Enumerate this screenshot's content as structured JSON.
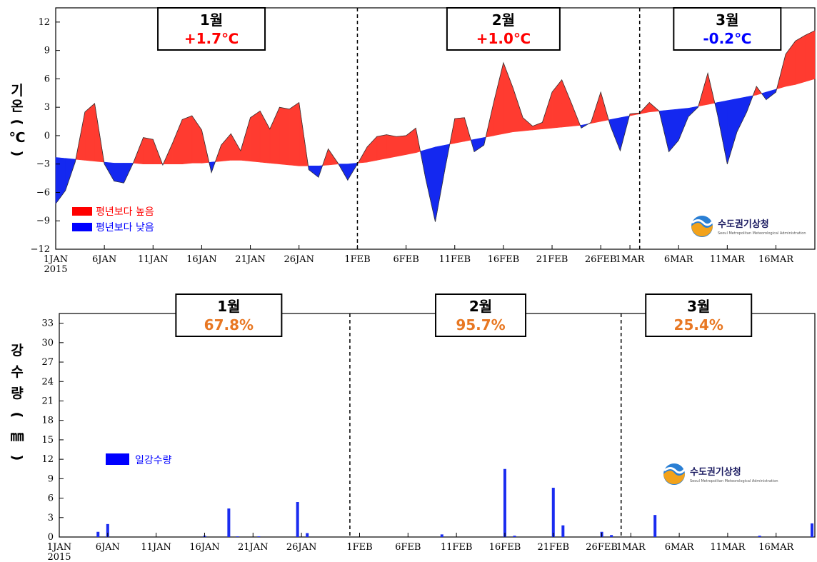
{
  "chart_data": [
    {
      "type": "area",
      "ylabel_chars": [
        "기",
        "온",
        "(",
        "℃",
        ")"
      ],
      "ylim": [
        -12,
        13.5
      ],
      "yticks": [
        12,
        9,
        6,
        3,
        0,
        -3,
        -6,
        -9,
        -12
      ],
      "xlim": [
        0,
        78
      ],
      "xticks": [
        {
          "x": 0,
          "label": "1JAN"
        },
        {
          "x": 5,
          "label": "6JAN"
        },
        {
          "x": 10,
          "label": "11JAN"
        },
        {
          "x": 15,
          "label": "16JAN"
        },
        {
          "x": 20,
          "label": "21JAN"
        },
        {
          "x": 25,
          "label": "26JAN"
        },
        {
          "x": 31,
          "label": "1FEB"
        },
        {
          "x": 36,
          "label": "6FEB"
        },
        {
          "x": 41,
          "label": "11FEB"
        },
        {
          "x": 46,
          "label": "16FEB"
        },
        {
          "x": 51,
          "label": "21FEB"
        },
        {
          "x": 56,
          "label": "26FEB"
        },
        {
          "x": 59,
          "label": "1MAR"
        },
        {
          "x": 64,
          "label": "6MAR"
        },
        {
          "x": 69,
          "label": "11MAR"
        },
        {
          "x": 74,
          "label": "16MAR"
        }
      ],
      "year_label": "2015",
      "month_dividers": [
        31,
        60
      ],
      "month_boxes": [
        {
          "month": "1월",
          "value": "+1.7℃",
          "color": "#ff0000",
          "center": 16
        },
        {
          "month": "2월",
          "value": "+1.0℃",
          "color": "#ff0000",
          "center": 46
        },
        {
          "month": "3월",
          "value": "-0.2℃",
          "color": "#0000ff",
          "center": 69
        }
      ],
      "legend": [
        {
          "label": "평년보다 높음",
          "color": "#ff0000"
        },
        {
          "label": "평년보다 낮음",
          "color": "#0000ff"
        }
      ],
      "legend_position": "lower-left",
      "series": [
        {
          "name": "평년보다 높음 / 낮음",
          "values": [
            -7.2,
            -5.8,
            -2.8,
            2.5,
            3.4,
            -3.0,
            -4.8,
            -5.0,
            -2.8,
            -0.2,
            -0.4,
            -3.1,
            -0.8,
            1.7,
            2.1,
            0.6,
            -3.9,
            -1.0,
            0.2,
            -1.6,
            1.9,
            2.6,
            0.7,
            3.0,
            2.8,
            3.5,
            -3.6,
            -4.4,
            -1.4,
            -2.9,
            -4.7,
            -3.0,
            -1.2,
            -0.1,
            0.1,
            -0.1,
            0.0,
            0.8,
            -4.5,
            -9.1,
            -3.5,
            1.8,
            1.9,
            -1.7,
            -1.0,
            3.5,
            7.7,
            5.0,
            1.9,
            1.0,
            1.4,
            4.6,
            5.9,
            3.4,
            0.8,
            1.4,
            4.6,
            1.0,
            -1.6,
            2.3,
            2.4,
            3.5,
            2.6,
            -1.7,
            -0.5,
            2.0,
            3.0,
            6.6,
            2.2,
            -3.0,
            0.4,
            2.5,
            5.2,
            3.8,
            4.6,
            8.6,
            10.0,
            10.6,
            11.1
          ]
        },
        {
          "name": "평년",
          "values": [
            -2.3,
            -2.4,
            -2.5,
            -2.6,
            -2.7,
            -2.8,
            -2.9,
            -2.9,
            -2.9,
            -3.0,
            -3.0,
            -3.0,
            -3.0,
            -3.0,
            -2.9,
            -2.9,
            -2.8,
            -2.7,
            -2.6,
            -2.6,
            -2.7,
            -2.8,
            -2.9,
            -3.0,
            -3.1,
            -3.2,
            -3.2,
            -3.2,
            -3.1,
            -3.0,
            -3.0,
            -2.9,
            -2.8,
            -2.6,
            -2.4,
            -2.2,
            -2.0,
            -1.8,
            -1.5,
            -1.2,
            -1.0,
            -0.8,
            -0.6,
            -0.4,
            -0.2,
            0.0,
            0.2,
            0.4,
            0.5,
            0.6,
            0.7,
            0.8,
            0.9,
            1.0,
            1.1,
            1.3,
            1.5,
            1.7,
            1.9,
            2.1,
            2.3,
            2.5,
            2.6,
            2.7,
            2.8,
            2.9,
            3.1,
            3.3,
            3.5,
            3.7,
            3.9,
            4.1,
            4.3,
            4.6,
            4.9,
            5.2,
            5.4,
            5.7,
            6.0
          ]
        }
      ],
      "grid": false
    },
    {
      "type": "bar",
      "ylabel_chars": [
        "강",
        "수",
        "량",
        "(",
        "㎜",
        ")"
      ],
      "ylim": [
        0,
        34.5
      ],
      "yticks": [
        33,
        30,
        27,
        24,
        21,
        18,
        15,
        12,
        9,
        6,
        3,
        0
      ],
      "xlim": [
        0,
        78
      ],
      "xticks": [
        {
          "x": 0,
          "label": "1JAN"
        },
        {
          "x": 5,
          "label": "6JAN"
        },
        {
          "x": 10,
          "label": "11JAN"
        },
        {
          "x": 15,
          "label": "16JAN"
        },
        {
          "x": 20,
          "label": "21JAN"
        },
        {
          "x": 25,
          "label": "26JAN"
        },
        {
          "x": 31,
          "label": "1FEB"
        },
        {
          "x": 36,
          "label": "6FEB"
        },
        {
          "x": 41,
          "label": "11FEB"
        },
        {
          "x": 46,
          "label": "16FEB"
        },
        {
          "x": 51,
          "label": "21FEB"
        },
        {
          "x": 56,
          "label": "26FEB"
        },
        {
          "x": 59,
          "label": "1MAR"
        },
        {
          "x": 64,
          "label": "6MAR"
        },
        {
          "x": 69,
          "label": "11MAR"
        },
        {
          "x": 74,
          "label": "16MAR"
        }
      ],
      "year_label": "2015",
      "month_dividers": [
        30,
        58
      ],
      "month_boxes": [
        {
          "month": "1월",
          "value": "67.8%",
          "color": "#e87722",
          "center": 17.5
        },
        {
          "month": "2월",
          "value": "95.7%",
          "color": "#e87722",
          "center": 43.5
        },
        {
          "month": "3월",
          "value": "25.4%",
          "color": "#e87722",
          "center": 66
        }
      ],
      "legend": [
        {
          "label": "일강수량",
          "color": "#0000ff"
        }
      ],
      "legend_position": "left",
      "series": [
        {
          "name": "일강수량",
          "bars": [
            {
              "x": 4,
              "value": 0.8
            },
            {
              "x": 5,
              "value": 2.0
            },
            {
              "x": 15,
              "value": 0.2
            },
            {
              "x": 17.5,
              "value": 4.4
            },
            {
              "x": 18.4,
              "value": 0.1
            },
            {
              "x": 20.6,
              "value": 0.1
            },
            {
              "x": 24.6,
              "value": 5.4
            },
            {
              "x": 25.6,
              "value": 0.6
            },
            {
              "x": 39.5,
              "value": 0.4
            },
            {
              "x": 46,
              "value": 10.5
            },
            {
              "x": 47,
              "value": 0.2
            },
            {
              "x": 51,
              "value": 7.6
            },
            {
              "x": 52,
              "value": 1.8
            },
            {
              "x": 56,
              "value": 0.8
            },
            {
              "x": 57,
              "value": 0.3
            },
            {
              "x": 61.5,
              "value": 3.4
            },
            {
              "x": 72.3,
              "value": 0.2
            },
            {
              "x": 78,
              "value": 2.1
            }
          ]
        }
      ],
      "grid": false
    }
  ],
  "logo": {
    "text": "수도권기상청",
    "subtext": "Seoul Metropolitan Meteorological Administration"
  }
}
